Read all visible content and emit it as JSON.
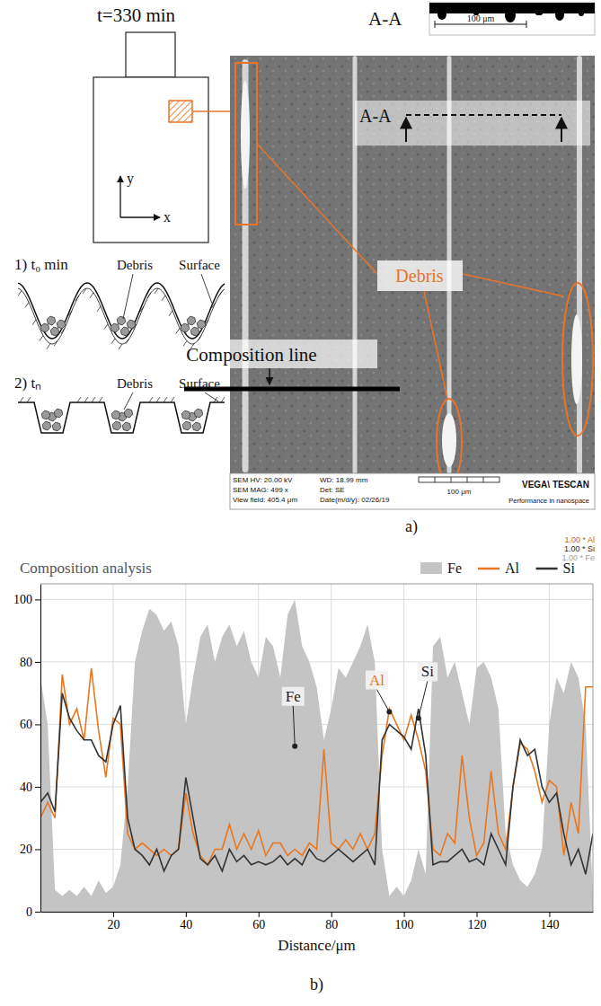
{
  "chart_data": {
    "type": "line",
    "title": "Composition analysis",
    "x_label": "Distance/μm",
    "x": [
      0,
      2,
      4,
      6,
      8,
      10,
      12,
      14,
      16,
      18,
      20,
      22,
      24,
      26,
      28,
      30,
      32,
      34,
      36,
      38,
      40,
      42,
      44,
      46,
      48,
      50,
      52,
      54,
      56,
      58,
      60,
      62,
      64,
      66,
      68,
      70,
      72,
      74,
      76,
      78,
      80,
      82,
      84,
      86,
      88,
      90,
      92,
      94,
      96,
      98,
      100,
      102,
      104,
      106,
      108,
      110,
      112,
      114,
      116,
      118,
      120,
      122,
      124,
      126,
      128,
      130,
      132,
      134,
      136,
      138,
      140,
      142,
      144,
      146,
      148,
      150,
      152
    ],
    "series": [
      {
        "name": "Fe",
        "type": "area",
        "color": "#c4c4c4",
        "values": [
          75,
          60,
          7,
          5,
          7,
          5,
          8,
          5,
          10,
          6,
          8,
          15,
          40,
          80,
          90,
          97,
          95,
          90,
          93,
          85,
          60,
          75,
          88,
          92,
          80,
          88,
          92,
          85,
          90,
          80,
          75,
          88,
          85,
          75,
          95,
          100,
          85,
          80,
          72,
          55,
          65,
          78,
          75,
          80,
          85,
          92,
          80,
          20,
          5,
          8,
          5,
          10,
          20,
          12,
          85,
          88,
          75,
          80,
          70,
          60,
          78,
          80,
          75,
          65,
          25,
          15,
          10,
          8,
          12,
          20,
          60,
          75,
          70,
          80,
          75,
          60,
          5
        ]
      },
      {
        "name": "Al",
        "type": "line",
        "color": "#e87722",
        "values": [
          30,
          35,
          30,
          76,
          60,
          65,
          55,
          78,
          58,
          43,
          62,
          60,
          25,
          20,
          22,
          20,
          18,
          20,
          18,
          20,
          38,
          25,
          18,
          15,
          20,
          20,
          28,
          20,
          25,
          20,
          26,
          18,
          22,
          22,
          18,
          20,
          18,
          22,
          20,
          52,
          22,
          20,
          23,
          20,
          25,
          20,
          25,
          50,
          65,
          60,
          55,
          63,
          55,
          45,
          20,
          18,
          25,
          22,
          50,
          30,
          18,
          22,
          45,
          25,
          20,
          40,
          54,
          52,
          45,
          35,
          42,
          40,
          18,
          35,
          25,
          72,
          72
        ]
      },
      {
        "name": "Si",
        "type": "line",
        "color": "#333333",
        "values": [
          35,
          38,
          32,
          70,
          62,
          58,
          55,
          55,
          50,
          48,
          60,
          66,
          30,
          20,
          18,
          15,
          20,
          13,
          18,
          20,
          43,
          30,
          17,
          15,
          18,
          13,
          20,
          16,
          18,
          15,
          16,
          15,
          16,
          18,
          15,
          17,
          15,
          20,
          17,
          16,
          18,
          20,
          18,
          16,
          18,
          20,
          15,
          55,
          60,
          58,
          56,
          52,
          65,
          50,
          15,
          16,
          16,
          18,
          20,
          16,
          17,
          15,
          25,
          20,
          15,
          40,
          55,
          50,
          52,
          40,
          35,
          38,
          25,
          15,
          20,
          12,
          25
        ]
      }
    ],
    "xlim": [
      0,
      152
    ],
    "ylim": [
      0,
      105
    ],
    "xticks": [
      20,
      40,
      60,
      80,
      100,
      120,
      140
    ],
    "yticks": [
      0,
      20,
      40,
      60,
      80,
      100
    ],
    "grid": true,
    "legend": "top",
    "annotations": [
      {
        "text": "Fe",
        "x": 70,
        "y": 53
      },
      {
        "text": "Al",
        "x": 96,
        "y": 64,
        "color": "#e87722"
      },
      {
        "text": "Si",
        "x": 104,
        "y": 62
      }
    ]
  },
  "figure": {
    "time_label": "t=330 min",
    "section": {
      "label": "A-A",
      "scale": "100 μm"
    },
    "axes": {
      "x": "x",
      "y": "y"
    },
    "schematic": [
      {
        "label": "1) t₀ min",
        "debris": "Debris",
        "surface": "Surface"
      },
      {
        "label": "2) tₙ",
        "debris": "Debris",
        "surface": "Surface"
      }
    ],
    "sem": {
      "section_label": "A-A",
      "debris_label": "Debris",
      "composition_line_label": "Composition line",
      "info": {
        "hv": "SEM HV: 20.00 kV",
        "mag": "SEM MAG: 499 x",
        "view_field": "View field: 405.4 μm",
        "wd": "WD: 18.99 mm",
        "det": "Det: SE",
        "date": "Date(m/d/y): 02/26/19",
        "scale": "100 μm",
        "brand": "VEGA\\ TESCAN",
        "slogan": "Performance in nanospace"
      }
    },
    "panel_labels": [
      "a)",
      "b)"
    ],
    "trace_labels": [
      "1.00 * Al",
      "1.00 * Si",
      "1.00 * Fe"
    ]
  }
}
